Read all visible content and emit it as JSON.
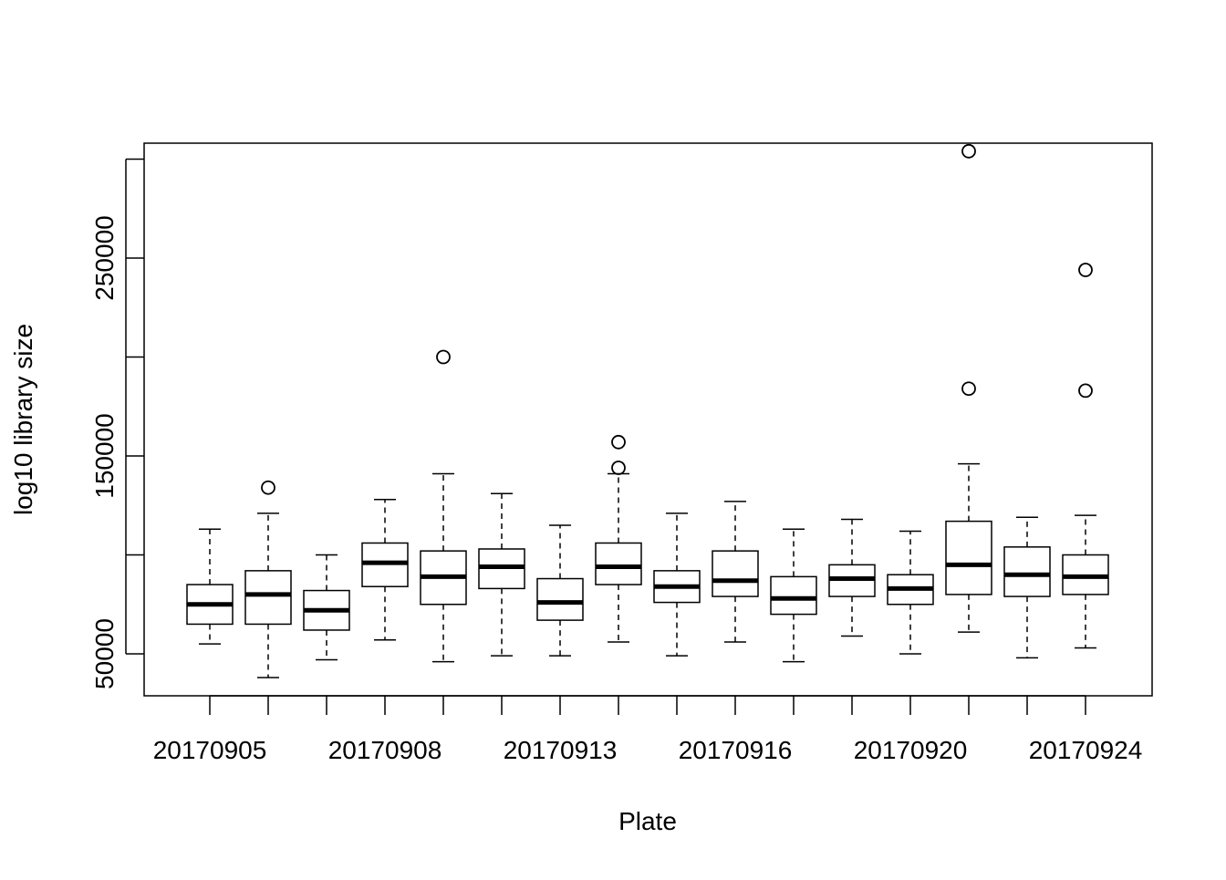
{
  "chart_data": {
    "type": "boxplot",
    "title": "",
    "xlabel": "Plate",
    "ylabel": "log10 library size",
    "ylim": [
      28000,
      308000
    ],
    "yticks": [
      50000,
      150000,
      250000
    ],
    "ytick_labels": [
      "50000",
      "150000",
      "250000"
    ],
    "xtick_labels_shown": [
      "20170905",
      "20170908",
      "20170913",
      "20170916",
      "20170920",
      "20170924"
    ],
    "xtick_label_positions": [
      0,
      3,
      6,
      9,
      12,
      15
    ],
    "grid": false,
    "legend": "none",
    "colors": {
      "box_fill": "#ffffff",
      "stroke": "#000000",
      "median": "#000000"
    },
    "boxes": [
      {
        "plate": "20170905",
        "whisker_low": 55000,
        "q1": 65000,
        "median": 75000,
        "q3": 85000,
        "whisker_high": 113000,
        "outliers": []
      },
      {
        "plate": "",
        "whisker_low": 38000,
        "q1": 65000,
        "median": 80000,
        "q3": 92000,
        "whisker_high": 121000,
        "outliers": [
          134000
        ]
      },
      {
        "plate": "",
        "whisker_low": 47000,
        "q1": 62000,
        "median": 72000,
        "q3": 82000,
        "whisker_high": 100000,
        "outliers": []
      },
      {
        "plate": "20170908",
        "whisker_low": 57000,
        "q1": 84000,
        "median": 96000,
        "q3": 106000,
        "whisker_high": 128000,
        "outliers": []
      },
      {
        "plate": "",
        "whisker_low": 46000,
        "q1": 75000,
        "median": 89000,
        "q3": 102000,
        "whisker_high": 141000,
        "outliers": [
          200000
        ]
      },
      {
        "plate": "",
        "whisker_low": 49000,
        "q1": 83000,
        "median": 94000,
        "q3": 103000,
        "whisker_high": 131000,
        "outliers": []
      },
      {
        "plate": "20170913",
        "whisker_low": 49000,
        "q1": 67000,
        "median": 76000,
        "q3": 88000,
        "whisker_high": 115000,
        "outliers": []
      },
      {
        "plate": "",
        "whisker_low": 56000,
        "q1": 85000,
        "median": 94000,
        "q3": 106000,
        "whisker_high": 141000,
        "outliers": [
          144000,
          157000
        ]
      },
      {
        "plate": "",
        "whisker_low": 49000,
        "q1": 76000,
        "median": 84000,
        "q3": 92000,
        "whisker_high": 121000,
        "outliers": []
      },
      {
        "plate": "20170916",
        "whisker_low": 56000,
        "q1": 79000,
        "median": 87000,
        "q3": 102000,
        "whisker_high": 127000,
        "outliers": []
      },
      {
        "plate": "",
        "whisker_low": 46000,
        "q1": 70000,
        "median": 78000,
        "q3": 89000,
        "whisker_high": 113000,
        "outliers": []
      },
      {
        "plate": "",
        "whisker_low": 59000,
        "q1": 79000,
        "median": 88000,
        "q3": 95000,
        "whisker_high": 118000,
        "outliers": []
      },
      {
        "plate": "20170920",
        "whisker_low": 50000,
        "q1": 75000,
        "median": 83000,
        "q3": 90000,
        "whisker_high": 112000,
        "outliers": []
      },
      {
        "plate": "",
        "whisker_low": 61000,
        "q1": 80000,
        "median": 95000,
        "q3": 117000,
        "whisker_high": 146000,
        "outliers": [
          184000,
          304000
        ]
      },
      {
        "plate": "",
        "whisker_low": 48000,
        "q1": 79000,
        "median": 90000,
        "q3": 104000,
        "whisker_high": 119000,
        "outliers": []
      },
      {
        "plate": "20170924",
        "whisker_low": 53000,
        "q1": 80000,
        "median": 89000,
        "q3": 100000,
        "whisker_high": 120000,
        "outliers": [
          183000,
          244000
        ]
      }
    ]
  }
}
